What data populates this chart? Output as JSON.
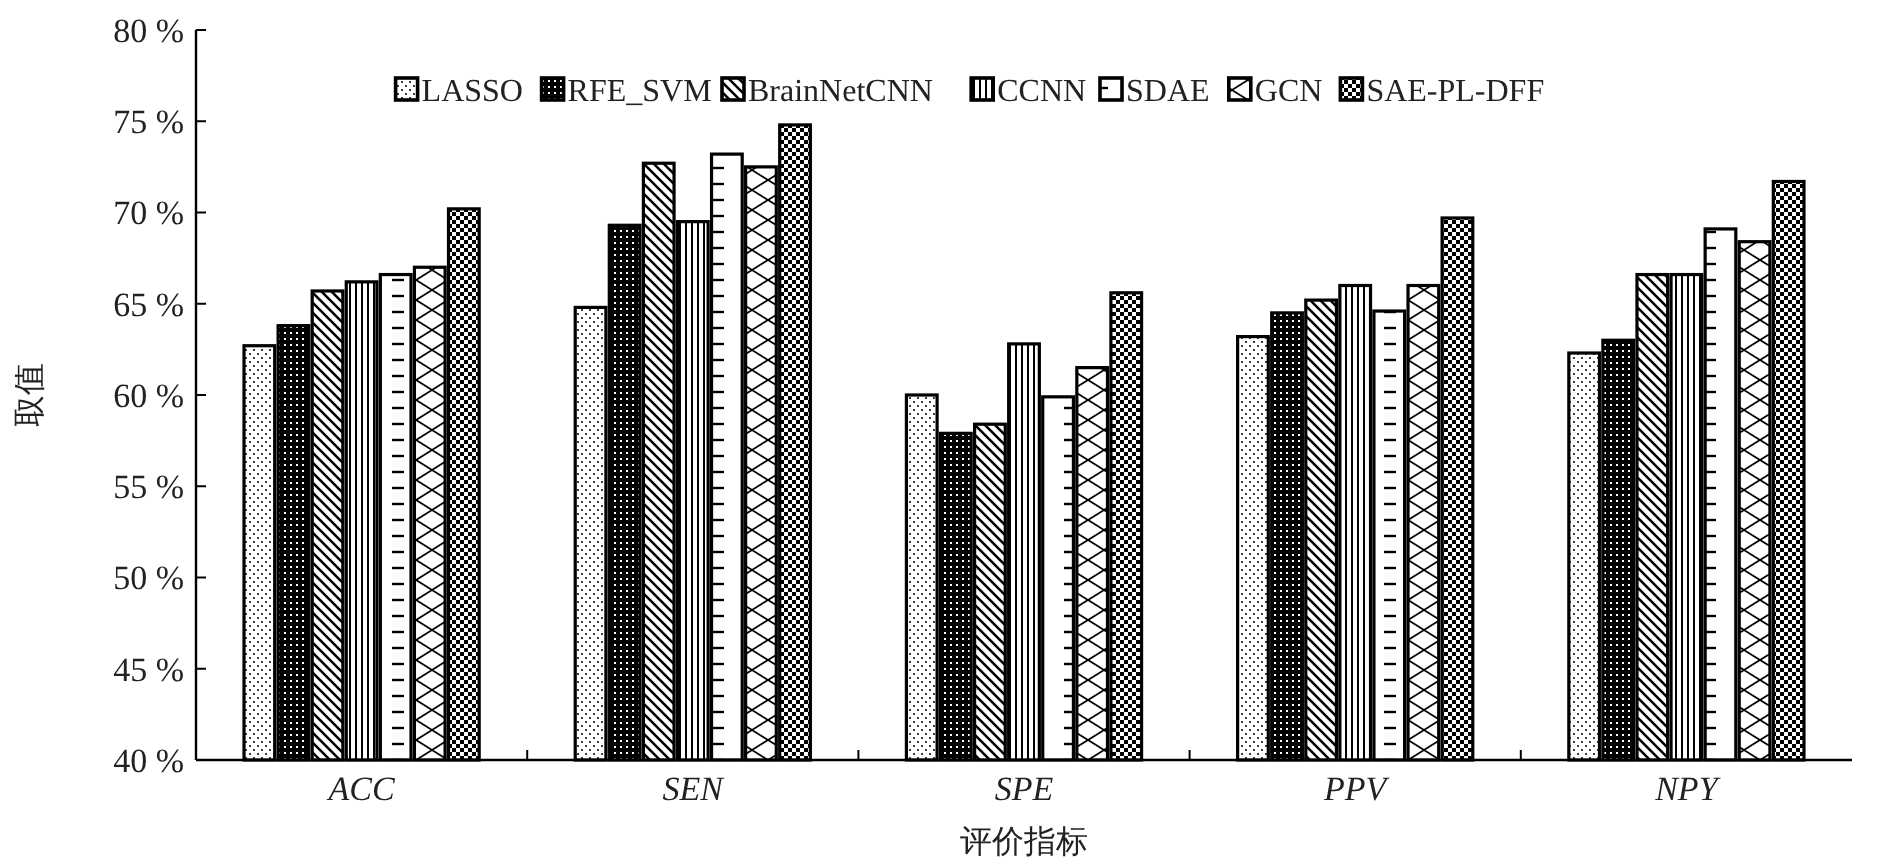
{
  "chart_data": {
    "type": "bar",
    "xlabel": "评价指标",
    "ylabel": "取值",
    "categories": [
      "ACC",
      "SEN",
      "SPE",
      "PPV",
      "NPY"
    ],
    "series": [
      {
        "name": "LASSO",
        "color": "#000000",
        "values": [
          62.7,
          64.8,
          60.0,
          63.2,
          62.3
        ]
      },
      {
        "name": "RFE_SVM",
        "color": "#000000",
        "values": [
          63.8,
          69.3,
          57.9,
          64.5,
          63.0
        ]
      },
      {
        "name": "BrainNetCNN",
        "color": "#000000",
        "values": [
          65.7,
          72.7,
          58.4,
          65.2,
          66.6
        ]
      },
      {
        "name": "CCNN",
        "color": "#000000",
        "values": [
          66.2,
          69.5,
          62.8,
          66.0,
          66.6
        ]
      },
      {
        "name": "SDAE",
        "color": "#000000",
        "values": [
          66.6,
          73.2,
          59.9,
          64.6,
          69.1
        ]
      },
      {
        "name": "GCN",
        "color": "#000000",
        "values": [
          67.0,
          72.5,
          61.5,
          66.0,
          68.4
        ]
      },
      {
        "name": "SAE-PL-DFF",
        "color": "#000000",
        "values": [
          70.2,
          74.8,
          65.6,
          69.7,
          71.7
        ]
      }
    ],
    "ylim": [
      40,
      80
    ],
    "yticks": [
      {
        "value": 40,
        "label": "40 %"
      },
      {
        "value": 45,
        "label": "45 %"
      },
      {
        "value": 50,
        "label": "50 %"
      },
      {
        "value": 55,
        "label": "55 %"
      },
      {
        "value": 60,
        "label": "60 %"
      },
      {
        "value": 65,
        "label": "65 %"
      },
      {
        "value": 70,
        "label": "70 %"
      },
      {
        "value": 75,
        "label": "75 %"
      },
      {
        "value": 80,
        "label": "80 %"
      }
    ],
    "grid": false,
    "legend": "top"
  }
}
